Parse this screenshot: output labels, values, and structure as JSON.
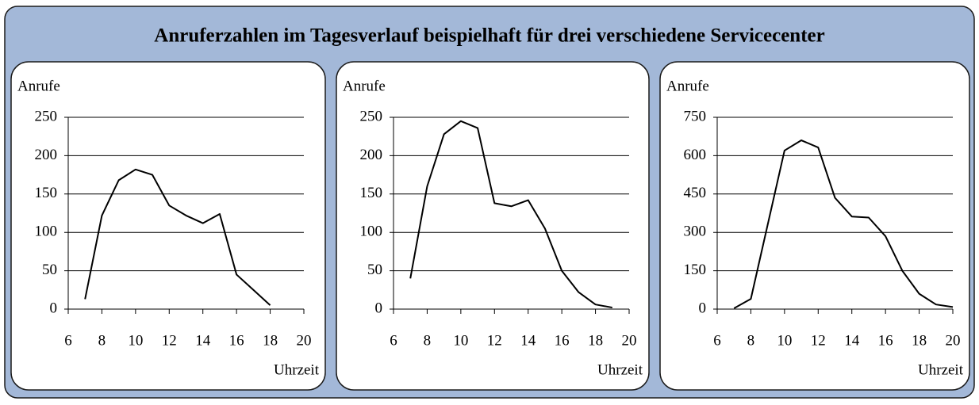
{
  "title": "Anruferzahlen im Tagesverlauf beispielhaft für drei verschiedene Servicecenter",
  "chart_data": [
    {
      "type": "line",
      "y_label": "Anrufe",
      "x_label": "Uhrzeit",
      "color": "#000000",
      "grid": true,
      "x": [
        7,
        8,
        9,
        10,
        11,
        12,
        13,
        14,
        15,
        16,
        17,
        18
      ],
      "values": [
        13,
        122,
        168,
        182,
        175,
        135,
        122,
        112,
        124,
        45,
        25,
        5
      ],
      "xlim": [
        6,
        20
      ],
      "xticks": [
        6,
        8,
        10,
        12,
        14,
        16,
        18,
        20
      ],
      "ylim": [
        0,
        250
      ],
      "yticks": [
        0,
        50,
        100,
        150,
        200,
        250
      ]
    },
    {
      "type": "line",
      "y_label": "Anrufe",
      "x_label": "Uhrzeit",
      "color": "#000000",
      "grid": true,
      "x": [
        7,
        8,
        9,
        10,
        11,
        12,
        13,
        14,
        15,
        16,
        17,
        18,
        19
      ],
      "values": [
        40,
        160,
        228,
        245,
        236,
        138,
        134,
        142,
        105,
        50,
        22,
        6,
        2
      ],
      "xlim": [
        6,
        20
      ],
      "xticks": [
        6,
        8,
        10,
        12,
        14,
        16,
        18,
        20
      ],
      "ylim": [
        0,
        250
      ],
      "yticks": [
        0,
        50,
        100,
        150,
        200,
        250
      ]
    },
    {
      "type": "line",
      "y_label": "Anrufe",
      "x_label": "Uhrzeit",
      "color": "#000000",
      "grid": true,
      "x": [
        7,
        8,
        9,
        10,
        11,
        12,
        13,
        14,
        15,
        16,
        17,
        18,
        19,
        20
      ],
      "values": [
        3,
        40,
        330,
        620,
        660,
        632,
        435,
        362,
        358,
        285,
        150,
        60,
        18,
        8
      ],
      "xlim": [
        6,
        20
      ],
      "xticks": [
        6,
        8,
        10,
        12,
        14,
        16,
        18,
        20
      ],
      "ylim": [
        0,
        750
      ],
      "yticks": [
        0,
        150,
        300,
        450,
        600,
        750
      ]
    }
  ]
}
